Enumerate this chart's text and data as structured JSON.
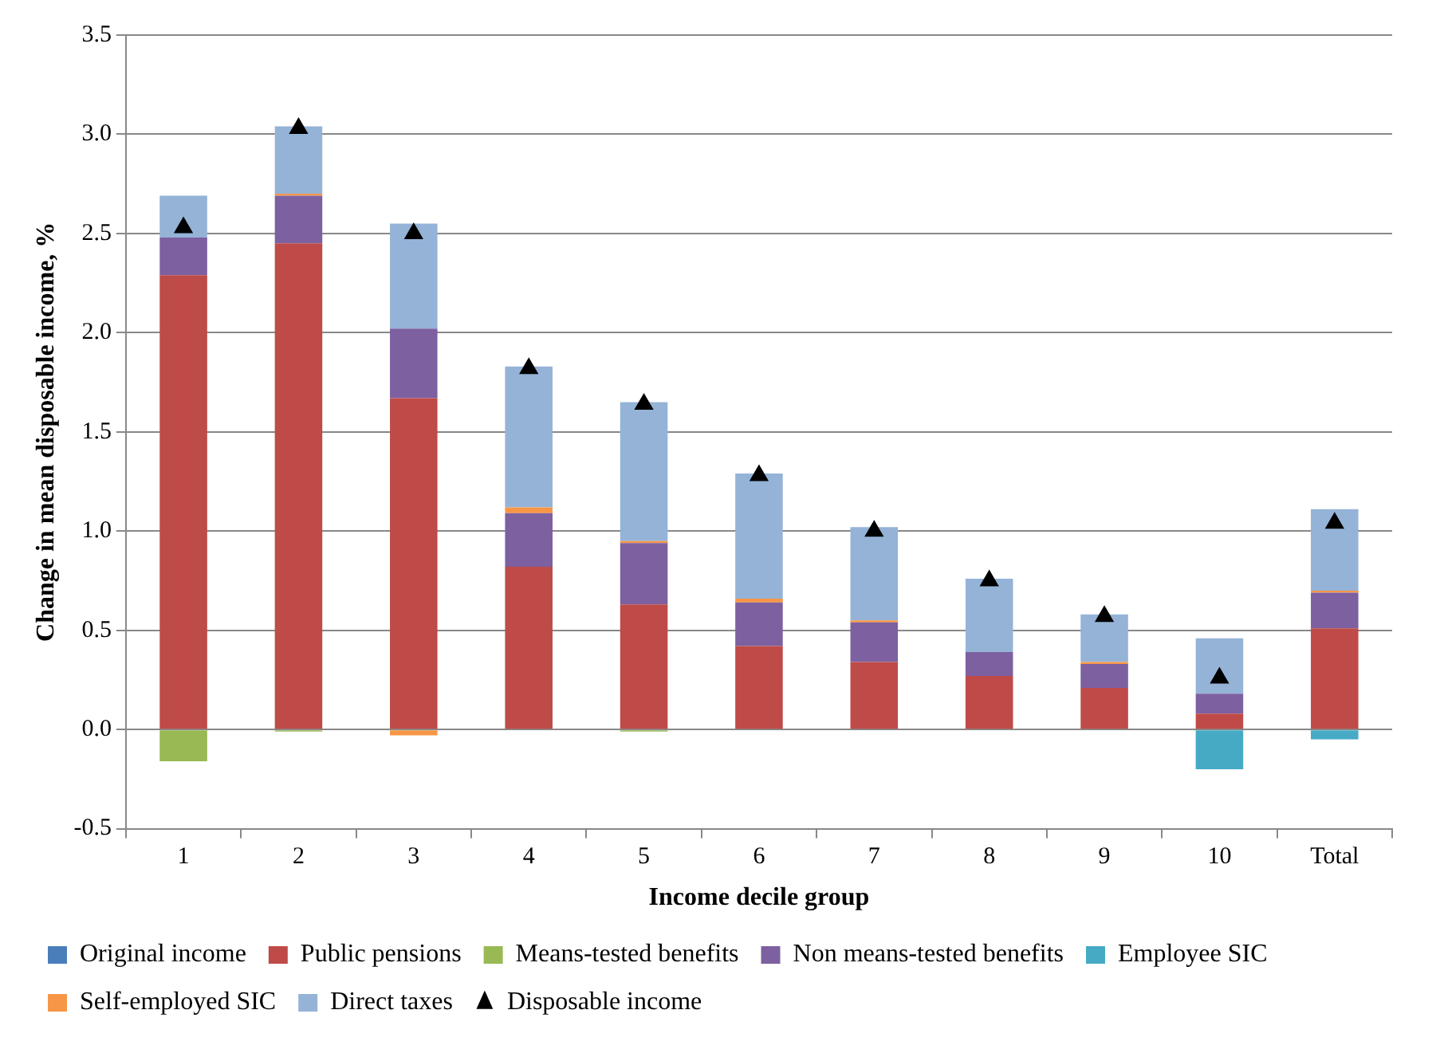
{
  "chart_data": {
    "type": "bar",
    "stacked": true,
    "xlabel": "Income decile group",
    "ylabel": "Change in mean disposable income, %",
    "categories": [
      "1",
      "2",
      "3",
      "4",
      "5",
      "6",
      "7",
      "8",
      "9",
      "10",
      "Total"
    ],
    "series": [
      {
        "name": "Original income",
        "color": "#4a7ebb",
        "values": [
          0,
          0,
          0,
          0,
          0,
          0,
          0,
          0,
          0,
          0,
          0
        ]
      },
      {
        "name": "Public pensions",
        "color": "#be4b48",
        "values": [
          2.29,
          2.45,
          1.67,
          0.82,
          0.63,
          0.42,
          0.34,
          0.27,
          0.21,
          0.08,
          0.51
        ]
      },
      {
        "name": "Means-tested benefits",
        "color": "#98b954",
        "values": [
          -0.16,
          -0.01,
          0,
          0,
          -0.01,
          0,
          0,
          0,
          0,
          0,
          0
        ]
      },
      {
        "name": "Non means-tested benefits",
        "color": "#7d60a0",
        "values": [
          0.19,
          0.24,
          0.35,
          0.27,
          0.31,
          0.22,
          0.2,
          0.12,
          0.12,
          0.1,
          0.18
        ]
      },
      {
        "name": "Employee SIC",
        "color": "#46aac5",
        "values": [
          0,
          0,
          0,
          0,
          0,
          0,
          0,
          0,
          0,
          -0.2,
          -0.05
        ]
      },
      {
        "name": "Self-employed SIC",
        "color": "#f79646",
        "values": [
          0,
          0.01,
          -0.03,
          0.03,
          0.01,
          0.02,
          0.01,
          0,
          0.01,
          0,
          0.01
        ]
      },
      {
        "name": "Direct taxes",
        "color": "#95b3d7",
        "values": [
          0.21,
          0.34,
          0.53,
          0.71,
          0.7,
          0.63,
          0.47,
          0.37,
          0.24,
          0.28,
          0.41
        ]
      },
      {
        "name": "Disposable income",
        "type": "scatter",
        "marker": "triangle",
        "color": "#000000",
        "x": [
          "1",
          "2",
          "3",
          "4",
          "5",
          "6",
          "7",
          "8",
          "9",
          "10",
          "Total"
        ],
        "values": [
          2.53,
          3.03,
          2.5,
          1.82,
          1.64,
          1.28,
          1.0,
          0.75,
          0.57,
          0.26,
          1.04
        ]
      }
    ],
    "ylim": [
      -0.5,
      3.5
    ],
    "yticks": [
      {
        "value": -0.5,
        "label": "-0.5"
      },
      {
        "value": 0,
        "label": "0.0"
      },
      {
        "value": 0.5,
        "label": "0.5"
      },
      {
        "value": 1,
        "label": "1.0"
      },
      {
        "value": 1.5,
        "label": "1.5"
      },
      {
        "value": 2,
        "label": "2.0"
      },
      {
        "value": 2.5,
        "label": "2.5"
      },
      {
        "value": 3,
        "label": "3.0"
      },
      {
        "value": 3.5,
        "label": "3.5"
      }
    ],
    "grid": "y",
    "legend": "bottom"
  }
}
